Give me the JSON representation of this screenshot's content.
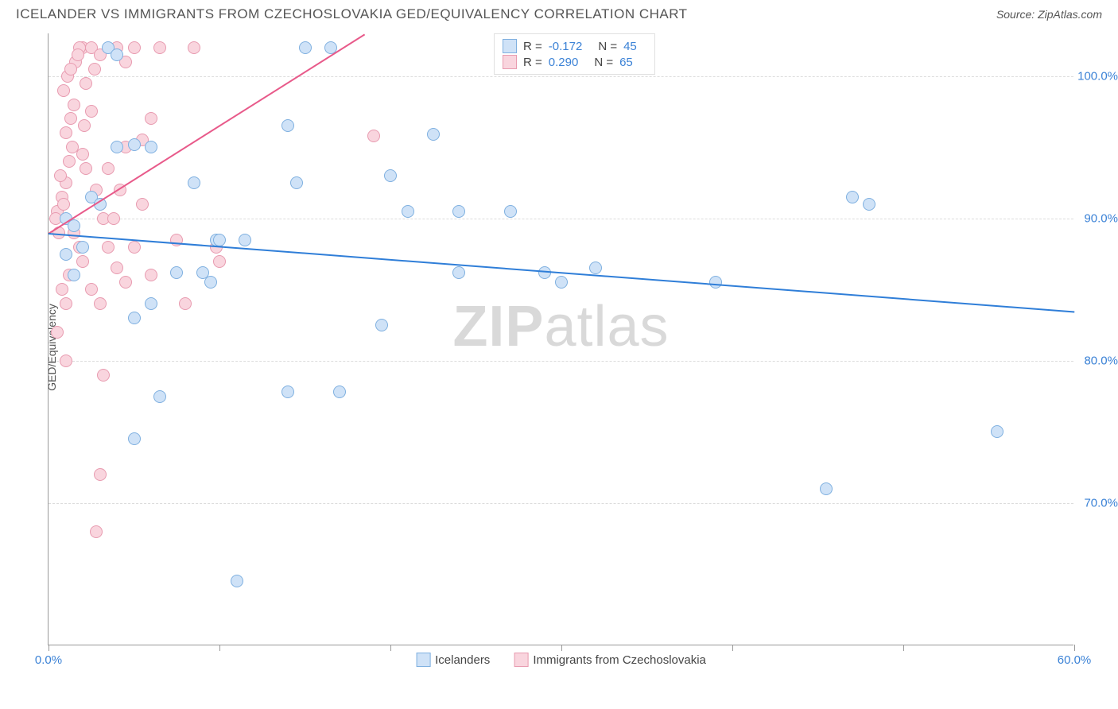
{
  "header": {
    "title": "ICELANDER VS IMMIGRANTS FROM CZECHOSLOVAKIA GED/EQUIVALENCY CORRELATION CHART",
    "source": "Source: ZipAtlas.com"
  },
  "chart": {
    "type": "scatter",
    "ylabel": "GED/Equivalency",
    "watermark_bold": "ZIP",
    "watermark_rest": "atlas",
    "xlim": [
      0,
      60
    ],
    "ylim": [
      60,
      103
    ],
    "xticks": [
      0,
      10,
      20,
      30,
      40,
      50,
      60
    ],
    "xlabels_shown": {
      "0": "0.0%",
      "60": "60.0%"
    },
    "yticks": [
      70,
      80,
      90,
      100
    ],
    "ylabels": {
      "70": "70.0%",
      "80": "80.0%",
      "90": "90.0%",
      "100": "100.0%"
    },
    "colors": {
      "series1_fill": "#cfe2f7",
      "series1_stroke": "#7fb0e0",
      "series1_line": "#2f7ed8",
      "series2_fill": "#f9d5de",
      "series2_stroke": "#e89bb0",
      "series2_line": "#e85a8a",
      "axis_text": "#3b82d6",
      "grid": "#dcdcdc",
      "watermark": "#d9d9d9"
    },
    "legend_top": [
      {
        "swatch": "series1",
        "R": "-0.172",
        "N": "45"
      },
      {
        "swatch": "series2",
        "R": "0.290",
        "N": "65"
      }
    ],
    "legend_bottom": [
      {
        "swatch": "series1",
        "label": "Icelanders"
      },
      {
        "swatch": "series2",
        "label": "Immigrants from Czechoslovakia"
      }
    ],
    "trend_lines": {
      "series1": {
        "x1": 0,
        "y1": 89.0,
        "x2": 60,
        "y2": 83.5
      },
      "series2": {
        "x1": 0,
        "y1": 89.0,
        "x2": 18.5,
        "y2": 103.0
      }
    },
    "series1_points": [
      [
        1.0,
        90.0
      ],
      [
        1.5,
        89.5
      ],
      [
        2.5,
        91.5
      ],
      [
        3.0,
        91.0
      ],
      [
        4.0,
        95.0
      ],
      [
        5.0,
        95.2
      ],
      [
        6.0,
        95.0
      ],
      [
        8.5,
        92.5
      ],
      [
        9.8,
        88.5
      ],
      [
        15.0,
        102.0
      ],
      [
        16.5,
        102.0
      ],
      [
        14.0,
        96.5
      ],
      [
        14.5,
        92.5
      ],
      [
        10.0,
        88.5
      ],
      [
        11.5,
        88.5
      ],
      [
        20.0,
        93.0
      ],
      [
        21.0,
        90.5
      ],
      [
        24.0,
        90.5
      ],
      [
        27.0,
        90.5
      ],
      [
        22.5,
        95.9
      ],
      [
        24.0,
        86.2
      ],
      [
        29.0,
        86.2
      ],
      [
        19.5,
        82.5
      ],
      [
        17.0,
        77.8
      ],
      [
        14.0,
        77.8
      ],
      [
        6.0,
        84.0
      ],
      [
        5.0,
        83.0
      ],
      [
        6.5,
        77.5
      ],
      [
        5.0,
        74.5
      ],
      [
        7.5,
        86.2
      ],
      [
        9.0,
        86.2
      ],
      [
        11.0,
        64.5
      ],
      [
        32.0,
        86.5
      ],
      [
        30.0,
        85.5
      ],
      [
        47.0,
        91.5
      ],
      [
        48.0,
        91.0
      ],
      [
        39.0,
        85.5
      ],
      [
        45.5,
        71.0
      ],
      [
        55.5,
        75.0
      ],
      [
        3.5,
        102.0
      ],
      [
        1.5,
        86.0
      ],
      [
        2.0,
        88.0
      ],
      [
        1.0,
        87.5
      ],
      [
        4.0,
        101.5
      ],
      [
        9.5,
        85.5
      ]
    ],
    "series2_points": [
      [
        0.5,
        90.5
      ],
      [
        0.8,
        91.5
      ],
      [
        1.0,
        92.5
      ],
      [
        0.7,
        93.0
      ],
      [
        1.2,
        94.0
      ],
      [
        1.4,
        95.0
      ],
      [
        1.0,
        96.0
      ],
      [
        1.3,
        97.0
      ],
      [
        1.5,
        98.0
      ],
      [
        0.9,
        99.0
      ],
      [
        1.1,
        100.0
      ],
      [
        1.6,
        101.0
      ],
      [
        2.0,
        102.0
      ],
      [
        2.5,
        97.5
      ],
      [
        2.0,
        94.5
      ],
      [
        2.2,
        93.5
      ],
      [
        2.8,
        92.0
      ],
      [
        3.0,
        91.0
      ],
      [
        3.2,
        90.0
      ],
      [
        1.5,
        89.0
      ],
      [
        1.8,
        88.0
      ],
      [
        2.0,
        87.0
      ],
      [
        1.2,
        86.0
      ],
      [
        0.8,
        85.0
      ],
      [
        1.0,
        84.0
      ],
      [
        2.5,
        85.0
      ],
      [
        3.0,
        84.0
      ],
      [
        0.5,
        82.0
      ],
      [
        1.0,
        80.0
      ],
      [
        3.2,
        79.0
      ],
      [
        3.0,
        72.0
      ],
      [
        2.8,
        68.0
      ],
      [
        4.0,
        102.0
      ],
      [
        5.0,
        102.0
      ],
      [
        6.5,
        102.0
      ],
      [
        4.5,
        101.0
      ],
      [
        5.5,
        95.5
      ],
      [
        6.0,
        97.0
      ],
      [
        7.5,
        88.5
      ],
      [
        8.5,
        102.0
      ],
      [
        3.5,
        88.0
      ],
      [
        4.0,
        86.5
      ],
      [
        4.5,
        85.5
      ],
      [
        5.0,
        88.0
      ],
      [
        3.8,
        90.0
      ],
      [
        4.2,
        92.0
      ],
      [
        5.5,
        91.0
      ],
      [
        6.0,
        86.0
      ],
      [
        2.5,
        102.0
      ],
      [
        3.0,
        101.5
      ],
      [
        1.8,
        102.0
      ],
      [
        2.2,
        99.5
      ],
      [
        2.7,
        100.5
      ],
      [
        8.0,
        84.0
      ],
      [
        9.8,
        88.0
      ],
      [
        10.0,
        87.0
      ],
      [
        0.6,
        89.0
      ],
      [
        0.4,
        90.0
      ],
      [
        0.9,
        91.0
      ],
      [
        1.3,
        100.5
      ],
      [
        1.7,
        101.5
      ],
      [
        2.1,
        96.5
      ],
      [
        19.0,
        95.8
      ],
      [
        4.5,
        95.0
      ],
      [
        3.5,
        93.5
      ]
    ]
  }
}
